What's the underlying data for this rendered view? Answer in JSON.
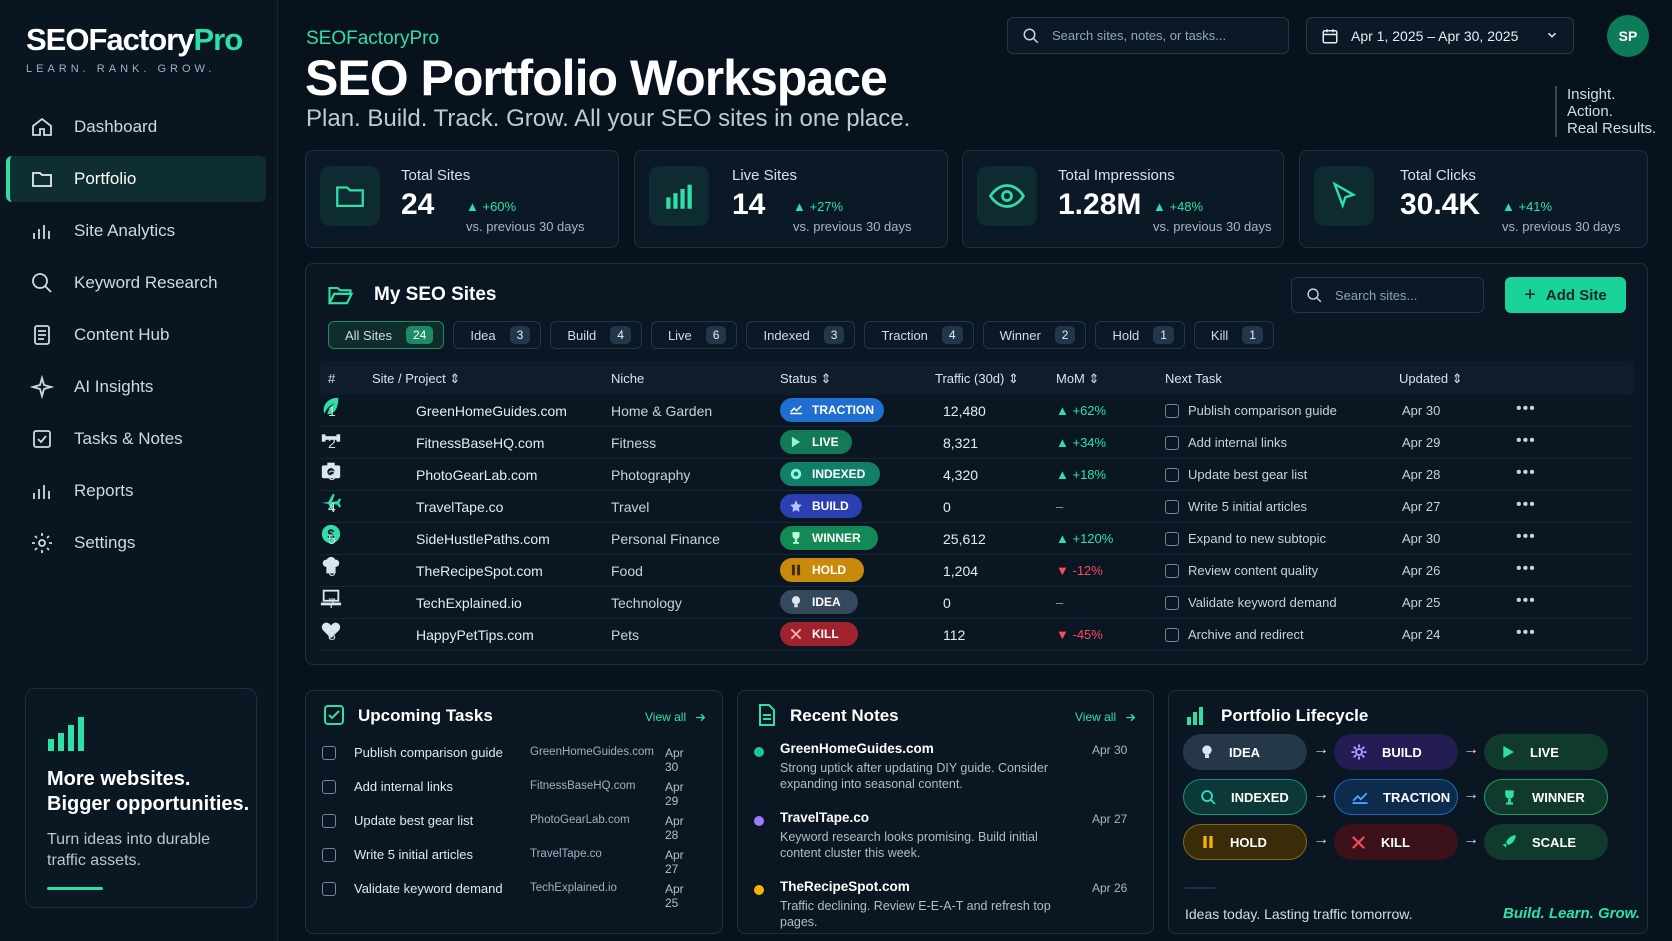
{
  "app": {
    "logo_main": "SEOFactory",
    "logo_accent": "Pro",
    "tagline": "LEARN. RANK. GROW."
  },
  "sidebar": {
    "items": [
      {
        "label": "Dashboard",
        "icon": "home-icon"
      },
      {
        "label": "Portfolio",
        "icon": "folder-icon",
        "active": true
      },
      {
        "label": "Site Analytics",
        "icon": "bar-chart-icon"
      },
      {
        "label": "Keyword Research",
        "icon": "search-icon"
      },
      {
        "label": "Content Hub",
        "icon": "document-icon"
      },
      {
        "label": "AI Insights",
        "icon": "sparkle-icon"
      },
      {
        "label": "Tasks & Notes",
        "icon": "checkbox-icon"
      },
      {
        "label": "Reports",
        "icon": "bar-chart-icon"
      },
      {
        "label": "Settings",
        "icon": "gear-icon"
      }
    ],
    "promo": {
      "title": "More websites. Bigger opportunities.",
      "text": "Turn ideas into durable traffic assets."
    }
  },
  "header": {
    "brand": "SEOFactoryPro",
    "title": "SEO Portfolio Workspace",
    "subtitle": "Plan. Build. Track. Grow. All your SEO sites in one place.",
    "search_placeholder": "Search sites, notes, or tasks...",
    "date_range": "Apr 1, 2025 – Apr 30, 2025",
    "avatar": "SP",
    "motto": [
      "Insight.",
      "Action.",
      "Real Results."
    ]
  },
  "kpis": [
    {
      "label": "Total Sites",
      "value": "24",
      "change": "+60%",
      "compare": "vs. previous 30 days",
      "icon": "folder-icon"
    },
    {
      "label": "Live Sites",
      "value": "14",
      "change": "+27%",
      "compare": "vs. previous 30 days",
      "icon": "bar-chart-icon"
    },
    {
      "label": "Total Impressions",
      "value": "1.28M",
      "change": "+48%",
      "compare": "vs. previous 30 days",
      "icon": "eye-icon"
    },
    {
      "label": "Total Clicks",
      "value": "30.4K",
      "change": "+41%",
      "compare": "vs. previous 30 days",
      "icon": "cursor-icon"
    }
  ],
  "sites": {
    "title": "My SEO Sites",
    "search_placeholder": "Search sites...",
    "add_label": "Add Site",
    "filters": [
      {
        "label": "All Sites",
        "count": "24",
        "active": true
      },
      {
        "label": "Idea",
        "count": "3"
      },
      {
        "label": "Build",
        "count": "4"
      },
      {
        "label": "Live",
        "count": "6"
      },
      {
        "label": "Indexed",
        "count": "3"
      },
      {
        "label": "Traction",
        "count": "4"
      },
      {
        "label": "Winner",
        "count": "2"
      },
      {
        "label": "Hold",
        "count": "1"
      },
      {
        "label": "Kill",
        "count": "1"
      }
    ],
    "columns": [
      "#",
      "Site / Project",
      "Niche",
      "Status",
      "Traffic (30d)",
      "MoM",
      "Next Task",
      "Updated"
    ],
    "rows": [
      {
        "num": "1",
        "name": "GreenHomeGuides.com",
        "niche": "Home & Garden",
        "status": "TRACTION",
        "traffic": "12,480",
        "mom": "+62%",
        "dir": "up",
        "task": "Publish comparison guide",
        "updated": "Apr 30",
        "icon": "leaf-icon"
      },
      {
        "num": "2",
        "name": "FitnessBaseHQ.com",
        "niche": "Fitness",
        "status": "LIVE",
        "traffic": "8,321",
        "mom": "+34%",
        "dir": "up",
        "task": "Add internal links",
        "updated": "Apr 29",
        "icon": "dumbbell-icon"
      },
      {
        "num": "3",
        "name": "PhotoGearLab.com",
        "niche": "Photography",
        "status": "INDEXED",
        "traffic": "4,320",
        "mom": "+18%",
        "dir": "up",
        "task": "Update best gear list",
        "updated": "Apr 28",
        "icon": "camera-icon"
      },
      {
        "num": "4",
        "name": "TravelTape.co",
        "niche": "Travel",
        "status": "BUILD",
        "traffic": "0",
        "mom": "–",
        "dir": "none",
        "task": "Write 5 initial articles",
        "updated": "Apr 27",
        "icon": "plane-icon"
      },
      {
        "num": "5",
        "name": "SideHustlePaths.com",
        "niche": "Personal Finance",
        "status": "WINNER",
        "traffic": "25,612",
        "mom": "+120%",
        "dir": "up",
        "task": "Expand to new subtopic",
        "updated": "Apr 30",
        "icon": "dollar-icon"
      },
      {
        "num": "6",
        "name": "TheRecipeSpot.com",
        "niche": "Food",
        "status": "HOLD",
        "traffic": "1,204",
        "mom": "-12%",
        "dir": "down",
        "task": "Review content quality",
        "updated": "Apr 26",
        "icon": "chef-hat-icon"
      },
      {
        "num": "7",
        "name": "TechExplained.io",
        "niche": "Technology",
        "status": "IDEA",
        "traffic": "0",
        "mom": "–",
        "dir": "none",
        "task": "Validate keyword demand",
        "updated": "Apr 25",
        "icon": "laptop-icon"
      },
      {
        "num": "8",
        "name": "HappyPetTips.com",
        "niche": "Pets",
        "status": "KILL",
        "traffic": "112",
        "mom": "-45%",
        "dir": "down",
        "task": "Archive and redirect",
        "updated": "Apr 24",
        "icon": "heart-icon"
      }
    ]
  },
  "tasks": {
    "title": "Upcoming Tasks",
    "view_all": "View all",
    "items": [
      {
        "task": "Publish comparison guide",
        "site": "GreenHomeGuides.com",
        "date": "Apr 30"
      },
      {
        "task": "Add internal links",
        "site": "FitnessBaseHQ.com",
        "date": "Apr 29"
      },
      {
        "task": "Update best gear list",
        "site": "PhotoGearLab.com",
        "date": "Apr 28"
      },
      {
        "task": "Write 5 initial articles",
        "site": "TravelTape.co",
        "date": "Apr 27"
      },
      {
        "task": "Validate keyword demand",
        "site": "TechExplained.io",
        "date": "Apr 25"
      }
    ]
  },
  "notes": {
    "title": "Recent Notes",
    "view_all": "View all",
    "items": [
      {
        "site": "GreenHomeGuides.com",
        "date": "Apr 30",
        "text": "Strong uptick after updating DIY guide. Consider expanding into seasonal content.",
        "color": "#19c98f"
      },
      {
        "site": "TravelTape.co",
        "date": "Apr 27",
        "text": "Keyword research looks promising. Build initial content cluster this week.",
        "color": "#9c7bff"
      },
      {
        "site": "TheRecipeSpot.com",
        "date": "Apr 26",
        "text": "Traffic declining. Review E-E-A-T and refresh top pages.",
        "color": "#f4b400"
      }
    ]
  },
  "lifecycle": {
    "title": "Portfolio Lifecycle",
    "stages": [
      "IDEA",
      "BUILD",
      "LIVE",
      "INDEXED",
      "TRACTION",
      "WINNER",
      "HOLD",
      "KILL",
      "SCALE"
    ],
    "footer": "Ideas today. Lasting traffic tomorrow.",
    "slogan": "Build. Learn. Grow."
  },
  "colors": {
    "accent": "#2ee0a6",
    "traction": "#1f6fd1",
    "live": "#127a55",
    "indexed": "#0f7f6a",
    "build": "#2b3fb0",
    "winner": "#138a55",
    "hold": "#c98a0c",
    "idea": "#34495c",
    "kill": "#a0222f"
  }
}
